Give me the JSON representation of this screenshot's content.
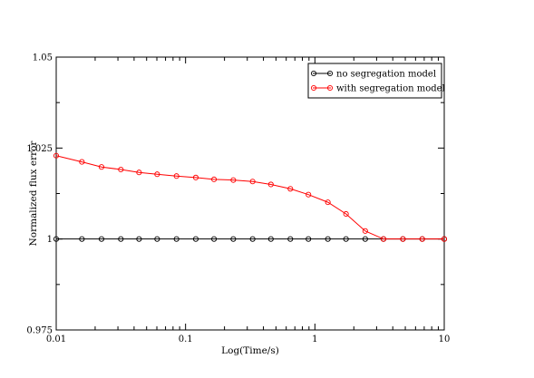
{
  "chart_data": {
    "type": "line",
    "xlabel": "Log(Time/s)",
    "ylabel": "Normalized flux error",
    "xscale": "log",
    "xlim": [
      0.01,
      10
    ],
    "ylim": [
      0.975,
      1.05
    ],
    "xticks": [
      {
        "value": 0.01,
        "label": "0.01"
      },
      {
        "value": 0.1,
        "label": "0.1"
      },
      {
        "value": 1,
        "label": "1"
      },
      {
        "value": 10,
        "label": "10"
      }
    ],
    "yticks": [
      {
        "value": 0.975,
        "label": "0.975"
      },
      {
        "value": 1.0,
        "label": "1"
      },
      {
        "value": 1.025,
        "label": "1.025"
      },
      {
        "value": 1.05,
        "label": "1.05"
      }
    ],
    "grid": false,
    "legend_position": "top-right",
    "series": [
      {
        "name": "no segregation model",
        "color": "#000000",
        "marker": "circle",
        "x": [
          0.01,
          0.0158,
          0.0224,
          0.0316,
          0.0437,
          0.0603,
          0.0851,
          0.12,
          0.166,
          0.234,
          0.33,
          0.457,
          0.646,
          0.891,
          1.26,
          1.74,
          2.45,
          3.39,
          4.79,
          6.76,
          10
        ],
        "y": [
          1.0,
          1.0,
          1.0,
          1.0,
          1.0,
          1.0,
          1.0,
          1.0,
          1.0,
          1.0,
          1.0,
          1.0,
          1.0,
          1.0,
          1.0,
          1.0,
          1.0,
          1.0,
          1.0,
          1.0,
          1.0
        ]
      },
      {
        "name": "with segregation model",
        "color": "#ff0000",
        "marker": "circle",
        "x": [
          0.01,
          0.0158,
          0.0224,
          0.0316,
          0.0437,
          0.0603,
          0.0851,
          0.12,
          0.166,
          0.234,
          0.33,
          0.457,
          0.646,
          0.891,
          1.26,
          1.74,
          2.45,
          3.39,
          4.79,
          6.76,
          10
        ],
        "y": [
          1.0229,
          1.0212,
          1.0198,
          1.0191,
          1.0183,
          1.0178,
          1.0173,
          1.0169,
          1.0164,
          1.0162,
          1.0158,
          1.015,
          1.0138,
          1.0122,
          1.0101,
          1.0069,
          1.0022,
          1.0,
          1.0,
          1.0,
          1.0
        ]
      }
    ]
  }
}
